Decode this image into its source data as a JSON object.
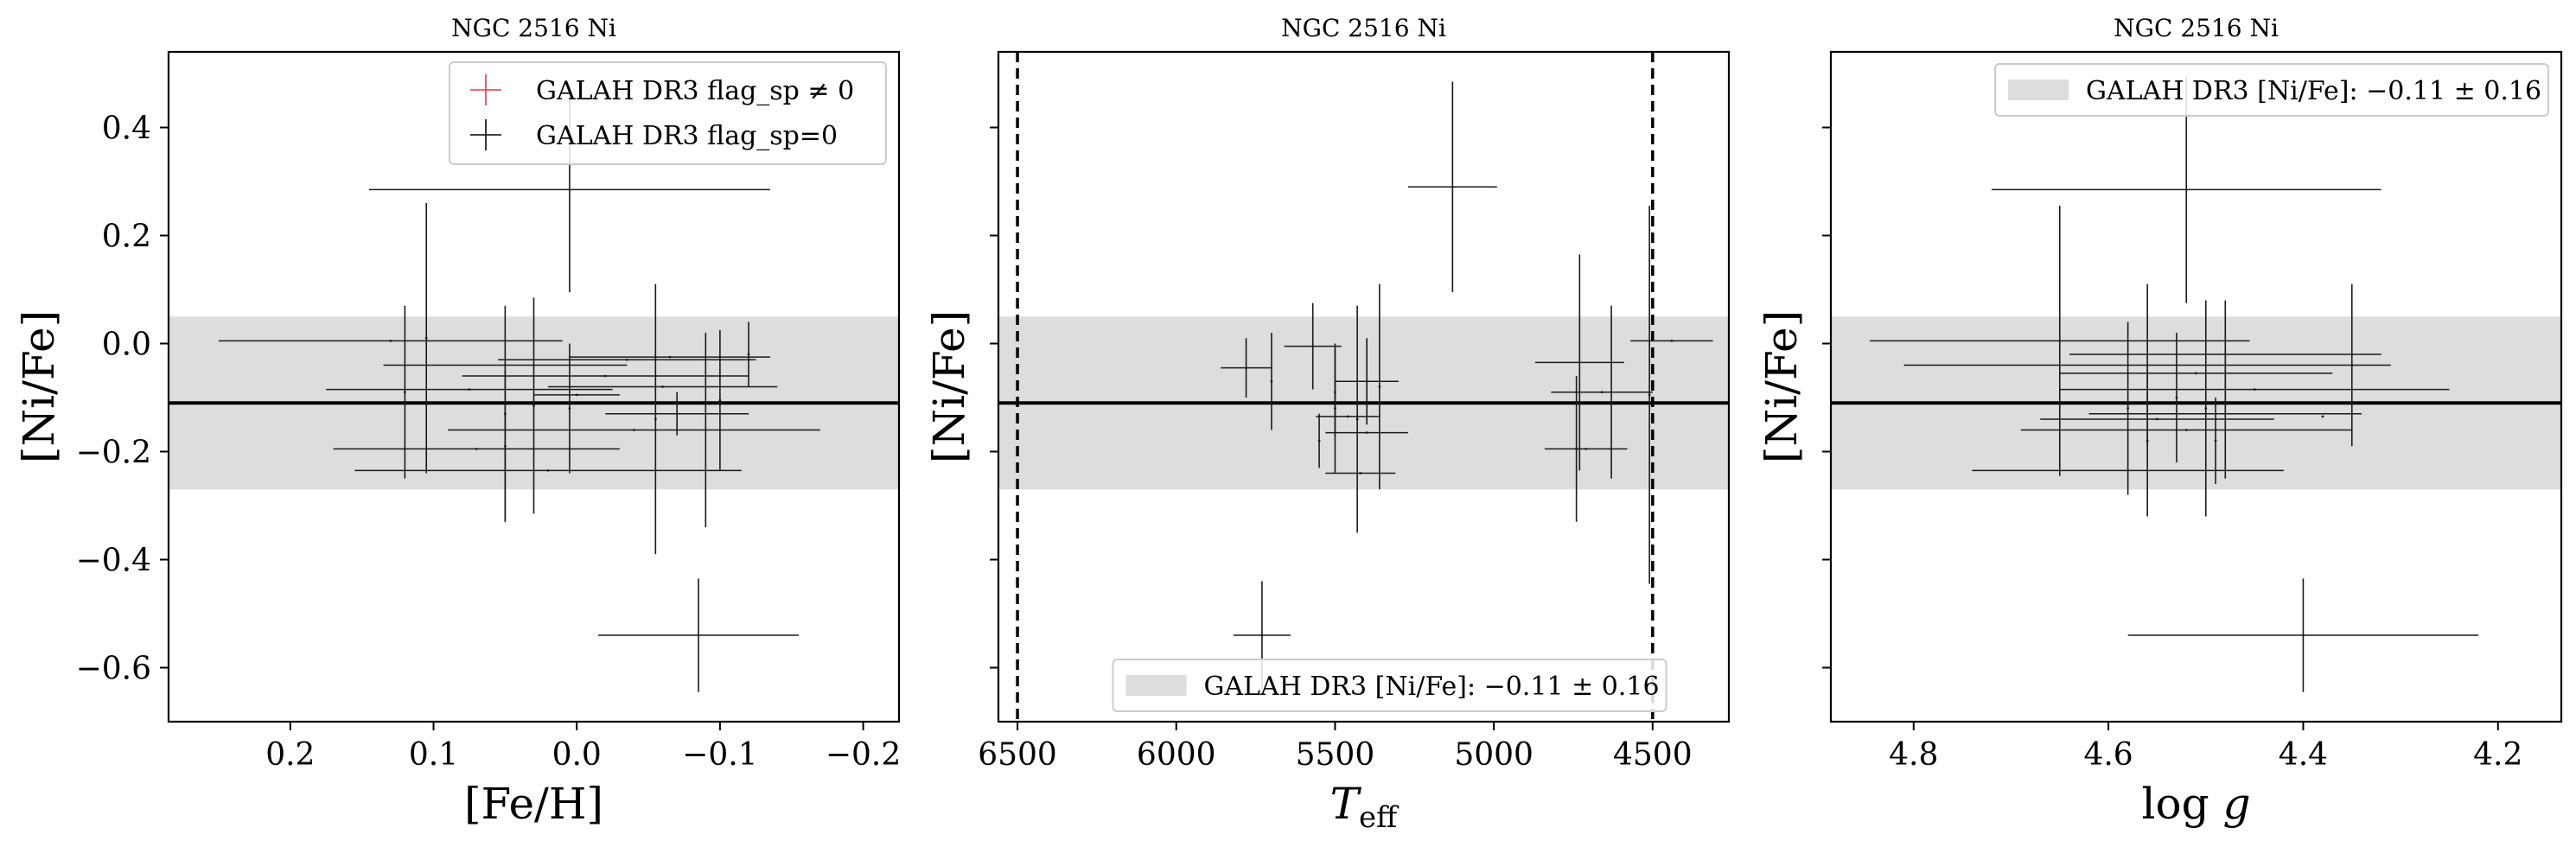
{
  "chart_data": [
    {
      "type": "scatter",
      "title": "NGC 2516 Ni",
      "xlabel": "[Fe/H]",
      "ylabel": "[Ni/Fe]",
      "xlim": [
        0.285,
        -0.225
      ],
      "ylim": [
        -0.7,
        0.54
      ],
      "xticks": [
        0.2,
        0.1,
        0.0,
        -0.1,
        -0.2
      ],
      "xtick_labels": [
        "0.2",
        "0.1",
        "0.0",
        "−0.1",
        "−0.2"
      ],
      "yticks": [
        0.4,
        0.2,
        0.0,
        -0.2,
        -0.4,
        -0.6
      ],
      "ytick_labels": [
        "0.4",
        "0.2",
        "0.0",
        "−0.2",
        "−0.4",
        "−0.6"
      ],
      "band": {
        "center": -0.11,
        "low": -0.27,
        "high": 0.05,
        "color": "#dddddd"
      },
      "mean_line": -0.11,
      "legend": {
        "placement": "top-right",
        "entries": [
          {
            "label": "GALAH DR3 flag_sp ≠ 0",
            "color": "#e8334a"
          },
          {
            "label": "GALAH DR3 flag_sp=0",
            "color": "#000000"
          }
        ]
      },
      "points": [
        {
          "x": 0.005,
          "y": 0.285,
          "xerr": 0.14,
          "yerr": 0.19
        },
        {
          "x": 0.13,
          "y": 0.005,
          "xerr": 0.12,
          "yerr": 0.0
        },
        {
          "x": 0.105,
          "y": 0.01,
          "xerr": 0.0,
          "yerr": 0.25
        },
        {
          "x": 0.05,
          "y": -0.04,
          "xerr": 0.085,
          "yerr": 0.0
        },
        {
          "x": 0.075,
          "y": -0.085,
          "xerr": 0.1,
          "yerr": 0.0
        },
        {
          "x": -0.02,
          "y": -0.06,
          "xerr": 0.1,
          "yerr": 0.0
        },
        {
          "x": -0.065,
          "y": -0.025,
          "xerr": 0.07,
          "yerr": 0.0
        },
        {
          "x": -0.035,
          "y": -0.03,
          "xerr": 0.09,
          "yerr": 0.0
        },
        {
          "x": -0.06,
          "y": -0.08,
          "xerr": 0.08,
          "yerr": 0.0
        },
        {
          "x": 0.0,
          "y": -0.095,
          "xerr": 0.03,
          "yerr": 0.0
        },
        {
          "x": -0.055,
          "y": -0.14,
          "xerr": 0.0,
          "yerr": 0.25
        },
        {
          "x": 0.03,
          "y": -0.115,
          "xerr": 0.0,
          "yerr": 0.2
        },
        {
          "x": 0.05,
          "y": -0.13,
          "xerr": 0.0,
          "yerr": 0.2
        },
        {
          "x": 0.005,
          "y": -0.12,
          "xerr": 0.0,
          "yerr": 0.12
        },
        {
          "x": -0.1,
          "y": -0.105,
          "xerr": 0.0,
          "yerr": 0.13
        },
        {
          "x": -0.09,
          "y": -0.16,
          "xerr": 0.0,
          "yerr": 0.18
        },
        {
          "x": -0.12,
          "y": -0.02,
          "xerr": 0.0,
          "yerr": 0.06
        },
        {
          "x": -0.04,
          "y": -0.16,
          "xerr": 0.13,
          "yerr": 0.0
        },
        {
          "x": 0.07,
          "y": -0.195,
          "xerr": 0.1,
          "yerr": 0.0
        },
        {
          "x": 0.02,
          "y": -0.235,
          "xerr": 0.135,
          "yerr": 0.0
        },
        {
          "x": 0.05,
          "y": -0.19,
          "xerr": 0.0,
          "yerr": 0.14
        },
        {
          "x": 0.12,
          "y": -0.09,
          "xerr": 0.0,
          "yerr": 0.16
        },
        {
          "x": -0.07,
          "y": -0.13,
          "xerr": 0.05,
          "yerr": 0.04
        },
        {
          "x": -0.085,
          "y": -0.54,
          "xerr": 0.07,
          "yerr": 0.105
        }
      ]
    },
    {
      "type": "scatter",
      "title": "NGC 2516 Ni",
      "xlabel": "Teff",
      "ylabel": "[Ni/Fe]",
      "xlim": [
        6560,
        4260
      ],
      "ylim": [
        -0.7,
        0.54
      ],
      "xticks": [
        6500,
        6000,
        5500,
        5000,
        4500
      ],
      "xtick_labels": [
        "6500",
        "6000",
        "5500",
        "5000",
        "4500"
      ],
      "yticks": [
        0.4,
        0.2,
        0.0,
        -0.2,
        -0.4,
        -0.6
      ],
      "ytick_labels": [
        "",
        "",
        "",
        "",
        "",
        ""
      ],
      "vlines": [
        6500,
        4500
      ],
      "band": {
        "center": -0.11,
        "low": -0.27,
        "high": 0.05,
        "color": "#dddddd"
      },
      "mean_line": -0.11,
      "legend": {
        "placement": "lower-center",
        "entries": [
          {
            "label": "GALAH DR3 [Ni/Fe]: −0.11 ± 0.16",
            "color": "#dddddd"
          }
        ]
      },
      "points": [
        {
          "x": 5130,
          "y": 0.29,
          "xerr": 140,
          "yerr": 0.195
        },
        {
          "x": 5570,
          "y": -0.005,
          "xerr": 90,
          "yerr": 0.08
        },
        {
          "x": 5780,
          "y": -0.045,
          "xerr": 80,
          "yerr": 0.055
        },
        {
          "x": 5700,
          "y": -0.07,
          "xerr": 0.0,
          "yerr": 0.09
        },
        {
          "x": 5500,
          "y": -0.09,
          "xerr": 0.0,
          "yerr": 0.08
        },
        {
          "x": 5400,
          "y": -0.07,
          "xerr": 100,
          "yerr": 0.08
        },
        {
          "x": 5360,
          "y": -0.08,
          "xerr": 0.0,
          "yerr": 0.19
        },
        {
          "x": 5430,
          "y": -0.14,
          "xerr": 0.0,
          "yerr": 0.21
        },
        {
          "x": 5500,
          "y": -0.12,
          "xerr": 0.0,
          "yerr": 0.12
        },
        {
          "x": 5460,
          "y": -0.135,
          "xerr": 100,
          "yerr": 0.0
        },
        {
          "x": 5400,
          "y": -0.165,
          "xerr": 130,
          "yerr": 0.0
        },
        {
          "x": 5420,
          "y": -0.24,
          "xerr": 110,
          "yerr": 0.0
        },
        {
          "x": 5550,
          "y": -0.18,
          "xerr": 0.0,
          "yerr": 0.05
        },
        {
          "x": 4730,
          "y": -0.035,
          "xerr": 140,
          "yerr": 0.2
        },
        {
          "x": 4630,
          "y": -0.09,
          "xerr": 0.0,
          "yerr": 0.16
        },
        {
          "x": 4510,
          "y": -0.095,
          "xerr": 0.0,
          "yerr": 0.35
        },
        {
          "x": 4440,
          "y": 0.005,
          "xerr": 130,
          "yerr": 0.0
        },
        {
          "x": 4740,
          "y": -0.195,
          "xerr": 0.0,
          "yerr": 0.135
        },
        {
          "x": 4710,
          "y": -0.195,
          "xerr": 130,
          "yerr": 0.0
        },
        {
          "x": 4660,
          "y": -0.09,
          "xerr": 160,
          "yerr": 0.0
        },
        {
          "x": 5730,
          "y": -0.54,
          "xerr": 90,
          "yerr": 0.1
        }
      ]
    },
    {
      "type": "scatter",
      "title": "NGC 2516 Ni",
      "xlabel": "log g",
      "ylabel": "[Ni/Fe]",
      "xlim": [
        4.885,
        4.135
      ],
      "ylim": [
        -0.7,
        0.54
      ],
      "xticks": [
        4.8,
        4.6,
        4.4,
        4.2
      ],
      "xtick_labels": [
        "4.8",
        "4.6",
        "4.4",
        "4.2"
      ],
      "yticks": [
        0.4,
        0.2,
        0.0,
        -0.2,
        -0.4,
        -0.6
      ],
      "ytick_labels": [
        "",
        "",
        "",
        "",
        "",
        ""
      ],
      "band": {
        "center": -0.11,
        "low": -0.27,
        "high": 0.05,
        "color": "#dddddd"
      },
      "mean_line": -0.11,
      "legend": {
        "placement": "top-right",
        "entries": [
          {
            "label": "GALAH DR3 [Ni/Fe]: −0.11 ± 0.16",
            "color": "#dddddd"
          }
        ]
      },
      "points": [
        {
          "x": 4.52,
          "y": 0.285,
          "xerr": 0.2,
          "yerr": 0.21
        },
        {
          "x": 4.65,
          "y": 0.005,
          "xerr": 0.195,
          "yerr": 0.25
        },
        {
          "x": 4.56,
          "y": -0.04,
          "xerr": 0.25,
          "yerr": 0.15
        },
        {
          "x": 4.48,
          "y": -0.02,
          "xerr": 0.16,
          "yerr": 0.1
        },
        {
          "x": 4.51,
          "y": -0.055,
          "xerr": 0.14,
          "yerr": 0.0
        },
        {
          "x": 4.45,
          "y": -0.085,
          "xerr": 0.2,
          "yerr": 0.0
        },
        {
          "x": 4.35,
          "y": -0.04,
          "xerr": 0.0,
          "yerr": 0.15
        },
        {
          "x": 4.53,
          "y": -0.1,
          "xerr": 0.0,
          "yerr": 0.12
        },
        {
          "x": 4.5,
          "y": -0.12,
          "xerr": 0.0,
          "yerr": 0.2
        },
        {
          "x": 4.48,
          "y": -0.13,
          "xerr": 0.14,
          "yerr": 0.12
        },
        {
          "x": 4.55,
          "y": -0.14,
          "xerr": 0.12,
          "yerr": 0.0
        },
        {
          "x": 4.52,
          "y": -0.16,
          "xerr": 0.17,
          "yerr": 0.0
        },
        {
          "x": 4.58,
          "y": -0.12,
          "xerr": 0.0,
          "yerr": 0.16
        },
        {
          "x": 4.38,
          "y": -0.135,
          "xerr": 0.0,
          "yerr": 0.0
        },
        {
          "x": 4.56,
          "y": -0.18,
          "xerr": 0.0,
          "yerr": 0.14
        },
        {
          "x": 4.49,
          "y": -0.18,
          "xerr": 0.0,
          "yerr": 0.08
        },
        {
          "x": 4.58,
          "y": -0.235,
          "xerr": 0.16,
          "yerr": 0.0
        },
        {
          "x": 4.4,
          "y": -0.54,
          "xerr": 0.18,
          "yerr": 0.105
        }
      ]
    }
  ]
}
